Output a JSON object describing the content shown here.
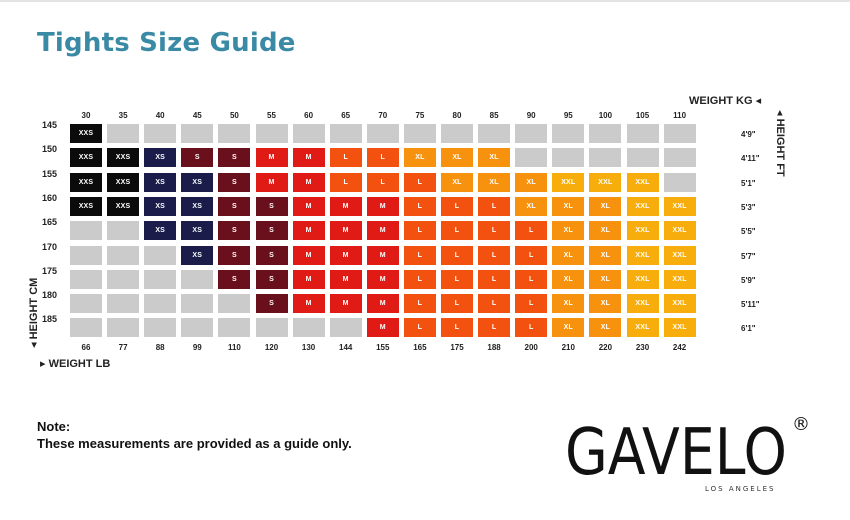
{
  "title": "Tights Size Guide",
  "axes": {
    "weight_kg_title": "WEIGHT KG",
    "weight_lb_title": "WEIGHT LB",
    "height_cm_title": "HEIGHT CM",
    "height_ft_title": "HEIGHT FT"
  },
  "weight_kg": [
    "30",
    "35",
    "40",
    "45",
    "50",
    "55",
    "60",
    "65",
    "70",
    "75",
    "80",
    "85",
    "90",
    "95",
    "100",
    "105",
    "110"
  ],
  "weight_lb": [
    "66",
    "77",
    "88",
    "99",
    "110",
    "120",
    "130",
    "144",
    "155",
    "165",
    "175",
    "188",
    "200",
    "210",
    "220",
    "230",
    "242"
  ],
  "height_cm": [
    "145",
    "150",
    "155",
    "160",
    "165",
    "170",
    "175",
    "180",
    "185"
  ],
  "height_ft": [
    "4'9\"",
    "4'11\"",
    "5'1\"",
    "5'3\"",
    "5'5\"",
    "5'7\"",
    "5'9\"",
    "5'11\"",
    "6'1\""
  ],
  "size_colors": {
    "XXS": "#0b0b0b",
    "XS": "#1b1c4a",
    "S": "#6a0f1c",
    "M": "#e01a15",
    "L": "#f2510f",
    "XL": "#f7920f",
    "XXL": "#f7ae0c",
    "empty": "#cbcbcb"
  },
  "grid": [
    [
      "XXS",
      "",
      "",
      "",
      "",
      "",
      "",
      "",
      "",
      "",
      "",
      "",
      "",
      "",
      "",
      "",
      ""
    ],
    [
      "XXS",
      "XXS",
      "XS",
      "S",
      "S",
      "M",
      "M",
      "L",
      "L",
      "XL",
      "XL",
      "XL",
      "",
      "",
      "",
      "",
      ""
    ],
    [
      "XXS",
      "XXS",
      "XS",
      "XS",
      "S",
      "M",
      "M",
      "L",
      "L",
      "L",
      "XL",
      "XL",
      "XL",
      "XXL",
      "XXL",
      "XXL",
      ""
    ],
    [
      "XXS",
      "XXS",
      "XS",
      "XS",
      "S",
      "S",
      "M",
      "M",
      "M",
      "L",
      "L",
      "L",
      "XL",
      "XL",
      "XL",
      "XXL",
      "XXL"
    ],
    [
      "",
      "",
      "XS",
      "XS",
      "S",
      "S",
      "M",
      "M",
      "M",
      "L",
      "L",
      "L",
      "L",
      "XL",
      "XL",
      "XXL",
      "XXL"
    ],
    [
      "",
      "",
      "",
      "XS",
      "S",
      "S",
      "M",
      "M",
      "M",
      "L",
      "L",
      "L",
      "L",
      "XL",
      "XL",
      "XXL",
      "XXL"
    ],
    [
      "",
      "",
      "",
      "",
      "S",
      "S",
      "M",
      "M",
      "M",
      "L",
      "L",
      "L",
      "L",
      "XL",
      "XL",
      "XXL",
      "XXL"
    ],
    [
      "",
      "",
      "",
      "",
      "",
      "S",
      "M",
      "M",
      "M",
      "L",
      "L",
      "L",
      "L",
      "XL",
      "XL",
      "XXL",
      "XXL"
    ],
    [
      "",
      "",
      "",
      "",
      "",
      "",
      "",
      "",
      "M",
      "L",
      "L",
      "L",
      "L",
      "XL",
      "XL",
      "XXL",
      "XXL"
    ]
  ],
  "note": {
    "title": "Note:",
    "text": "These measurements are provided as a guide only."
  },
  "logo": {
    "brand": "GAVELO",
    "registered": "®",
    "tagline": "LOS ANGELES"
  }
}
